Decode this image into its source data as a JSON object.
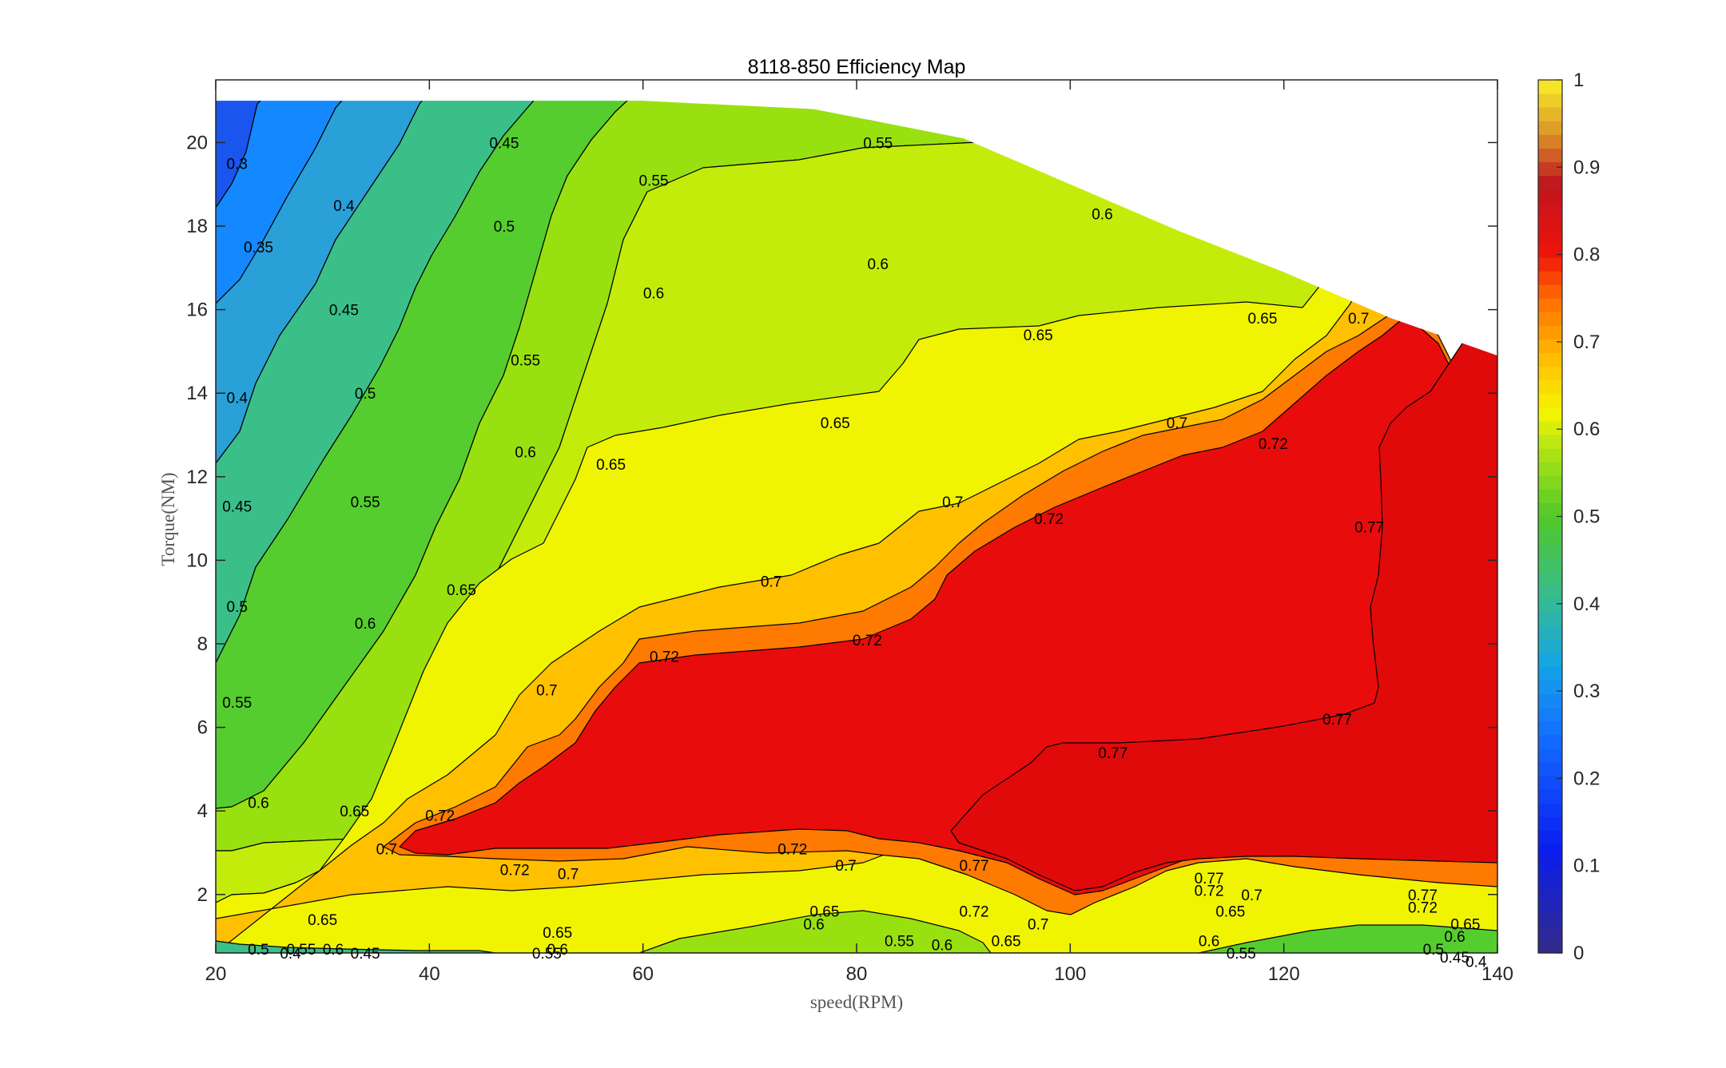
{
  "chart_data": {
    "type": "contour",
    "title": "8118-850 Efficiency Map",
    "xlabel": "speed(RPM)",
    "ylabel": "Torque(NM)",
    "xlim": [
      20,
      140
    ],
    "ylim": [
      0.6,
      21.5
    ],
    "xticks": [
      "20",
      "40",
      "60",
      "80",
      "100",
      "120",
      "140"
    ],
    "xtick_values": [
      20,
      40,
      60,
      80,
      100,
      120,
      140
    ],
    "yticks": [
      "2",
      "4",
      "6",
      "8",
      "10",
      "12",
      "14",
      "16",
      "18",
      "20"
    ],
    "ytick_values": [
      2,
      4,
      6,
      8,
      10,
      12,
      14,
      16,
      18,
      20
    ],
    "colorbar": {
      "range": [
        0,
        1
      ],
      "ticks": [
        "0",
        "0.1",
        "0.2",
        "0.3",
        "0.4",
        "0.5",
        "0.6",
        "0.7",
        "0.8",
        "0.9",
        "1"
      ],
      "tick_values": [
        0,
        0.1,
        0.2,
        0.3,
        0.4,
        0.5,
        0.6,
        0.7,
        0.8,
        0.9,
        1.0
      ]
    },
    "levels": [
      0.3,
      0.35,
      0.4,
      0.45,
      0.5,
      0.55,
      0.6,
      0.65,
      0.7,
      0.72,
      0.77
    ],
    "colors": {
      "below_0.3": "#1a55ee",
      "0.3": "#1488ff",
      "0.35": "#2aa0d8",
      "0.4": "#3abf88",
      "0.45": "#4cc838",
      "0.5": "#55cd2e",
      "0.55": "#99e010",
      "0.6": "#c4ec0a",
      "0.65": "#f0f400",
      "0.7": "#ffc000",
      "0.72": "#ff7a00",
      "0.77": "#e80c0c",
      "max_region": "#e00a0a"
    },
    "torque_limit": [
      {
        "x": 20,
        "y": 21.0
      },
      {
        "x": 60,
        "y": 21.0
      },
      {
        "x": 76,
        "y": 20.8
      },
      {
        "x": 90,
        "y": 20.1
      },
      {
        "x": 100,
        "y": 19.0
      },
      {
        "x": 110,
        "y": 17.9
      },
      {
        "x": 120,
        "y": 16.9
      },
      {
        "x": 130,
        "y": 15.8
      },
      {
        "x": 140,
        "y": 14.9
      }
    ],
    "contour_labels": [
      {
        "text": "0.3",
        "x": 22,
        "y": 19.5
      },
      {
        "text": "0.35",
        "x": 24,
        "y": 17.5
      },
      {
        "text": "0.4",
        "x": 22,
        "y": 13.9
      },
      {
        "text": "0.4",
        "x": 32,
        "y": 18.5
      },
      {
        "text": "0.45",
        "x": 22,
        "y": 11.3
      },
      {
        "text": "0.45",
        "x": 32,
        "y": 16.0
      },
      {
        "text": "0.45",
        "x": 47,
        "y": 20.0
      },
      {
        "text": "0.5",
        "x": 22,
        "y": 8.9
      },
      {
        "text": "0.5",
        "x": 34,
        "y": 14.0
      },
      {
        "text": "0.5",
        "x": 47,
        "y": 18.0
      },
      {
        "text": "0.55",
        "x": 22,
        "y": 6.6
      },
      {
        "text": "0.55",
        "x": 34,
        "y": 11.4
      },
      {
        "text": "0.55",
        "x": 49,
        "y": 14.8
      },
      {
        "text": "0.55",
        "x": 61,
        "y": 19.1
      },
      {
        "text": "0.55",
        "x": 82,
        "y": 20.0
      },
      {
        "text": "0.6",
        "x": 24,
        "y": 4.2
      },
      {
        "text": "0.6",
        "x": 34,
        "y": 8.5
      },
      {
        "text": "0.6",
        "x": 49,
        "y": 12.6
      },
      {
        "text": "0.6",
        "x": 61,
        "y": 16.4
      },
      {
        "text": "0.6",
        "x": 82,
        "y": 17.1
      },
      {
        "text": "0.6",
        "x": 103,
        "y": 18.3
      },
      {
        "text": "0.65",
        "x": 33,
        "y": 4.0
      },
      {
        "text": "0.65",
        "x": 43,
        "y": 9.3
      },
      {
        "text": "0.65",
        "x": 57,
        "y": 12.3
      },
      {
        "text": "0.65",
        "x": 78,
        "y": 13.3
      },
      {
        "text": "0.65",
        "x": 97,
        "y": 15.4
      },
      {
        "text": "0.65",
        "x": 118,
        "y": 15.8
      },
      {
        "text": "0.7",
        "x": 36,
        "y": 3.1
      },
      {
        "text": "0.7",
        "x": 51,
        "y": 6.9
      },
      {
        "text": "0.7",
        "x": 72,
        "y": 9.5
      },
      {
        "text": "0.7",
        "x": 89,
        "y": 11.4
      },
      {
        "text": "0.7",
        "x": 110,
        "y": 13.3
      },
      {
        "text": "0.7",
        "x": 127,
        "y": 15.8
      },
      {
        "text": "0.72",
        "x": 41,
        "y": 3.9
      },
      {
        "text": "0.72",
        "x": 62,
        "y": 7.7
      },
      {
        "text": "0.72",
        "x": 81,
        "y": 8.1
      },
      {
        "text": "0.72",
        "x": 98,
        "y": 11.0
      },
      {
        "text": "0.72",
        "x": 119,
        "y": 12.8
      },
      {
        "text": "0.77",
        "x": 128,
        "y": 10.8
      },
      {
        "text": "0.77",
        "x": 104,
        "y": 5.4
      },
      {
        "text": "0.77",
        "x": 125,
        "y": 6.2
      },
      {
        "text": "0.72",
        "x": 48,
        "y": 2.6
      },
      {
        "text": "0.72",
        "x": 74,
        "y": 3.1
      },
      {
        "text": "0.7",
        "x": 53,
        "y": 2.5
      },
      {
        "text": "0.7",
        "x": 79,
        "y": 2.7
      },
      {
        "text": "0.77",
        "x": 91,
        "y": 2.7
      },
      {
        "text": "0.72",
        "x": 91,
        "y": 1.6
      },
      {
        "text": "0.7",
        "x": 97,
        "y": 1.3
      },
      {
        "text": "0.65",
        "x": 94,
        "y": 0.9
      },
      {
        "text": "0.65",
        "x": 30,
        "y": 1.4
      },
      {
        "text": "0.65",
        "x": 52,
        "y": 1.1
      },
      {
        "text": "0.65",
        "x": 77,
        "y": 1.6
      },
      {
        "text": "0.6",
        "x": 76,
        "y": 1.3
      },
      {
        "text": "0.55",
        "x": 84,
        "y": 0.9
      },
      {
        "text": "0.6",
        "x": 88,
        "y": 0.8
      },
      {
        "text": "0.6",
        "x": 52,
        "y": 0.7
      },
      {
        "text": "0.55",
        "x": 51,
        "y": 0.6
      },
      {
        "text": "0.5",
        "x": 24,
        "y": 0.7
      },
      {
        "text": "0.55",
        "x": 28,
        "y": 0.7
      },
      {
        "text": "0.6",
        "x": 31,
        "y": 0.7
      },
      {
        "text": "0.4",
        "x": 27,
        "y": 0.6
      },
      {
        "text": "0.45",
        "x": 34,
        "y": 0.6
      },
      {
        "text": "0.77",
        "x": 113,
        "y": 2.4
      },
      {
        "text": "0.72",
        "x": 113,
        "y": 2.1
      },
      {
        "text": "0.7",
        "x": 117,
        "y": 2.0
      },
      {
        "text": "0.65",
        "x": 115,
        "y": 1.6
      },
      {
        "text": "0.6",
        "x": 113,
        "y": 0.9
      },
      {
        "text": "0.55",
        "x": 116,
        "y": 0.6
      },
      {
        "text": "0.77",
        "x": 133,
        "y": 2.0
      },
      {
        "text": "0.72",
        "x": 133,
        "y": 1.7
      },
      {
        "text": "0.65",
        "x": 137,
        "y": 1.3
      },
      {
        "text": "0.6",
        "x": 136,
        "y": 1.0
      },
      {
        "text": "0.5",
        "x": 134,
        "y": 0.7
      },
      {
        "text": "0.45",
        "x": 136,
        "y": 0.5
      },
      {
        "text": "0.4",
        "x": 138,
        "y": 0.4
      }
    ]
  }
}
